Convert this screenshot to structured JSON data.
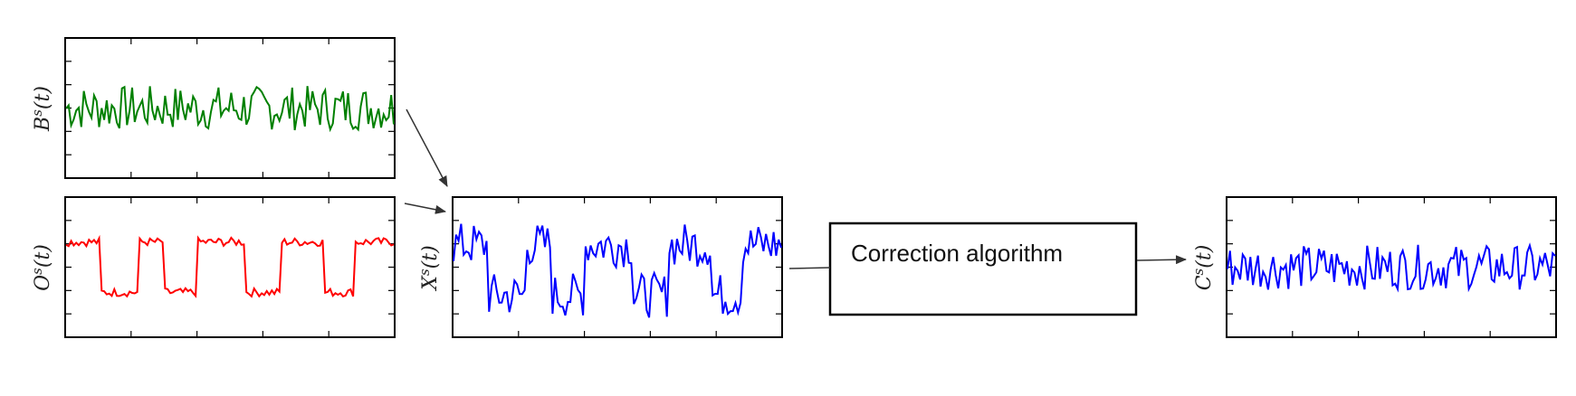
{
  "panels": [
    {
      "id": "B",
      "label_base": "B",
      "label_sup": "s",
      "label_arg": "(t)",
      "color": "#008000",
      "pattern": "noise"
    },
    {
      "id": "O",
      "label_base": "O",
      "label_sup": "s",
      "label_arg": "(t)",
      "color": "#ff0000",
      "pattern": "square"
    },
    {
      "id": "X",
      "label_base": "X",
      "label_sup": "s",
      "label_arg": "(t)",
      "color": "#0000ff",
      "pattern": "square-noisy"
    },
    {
      "id": "C",
      "label_base": "C",
      "label_sup": "s",
      "label_arg": "(t)",
      "color": "#0000ff",
      "pattern": "noise"
    }
  ],
  "process_box": {
    "label": "Correction algorithm"
  },
  "colors": {
    "frame": "#000000",
    "arrow": "#333333"
  }
}
